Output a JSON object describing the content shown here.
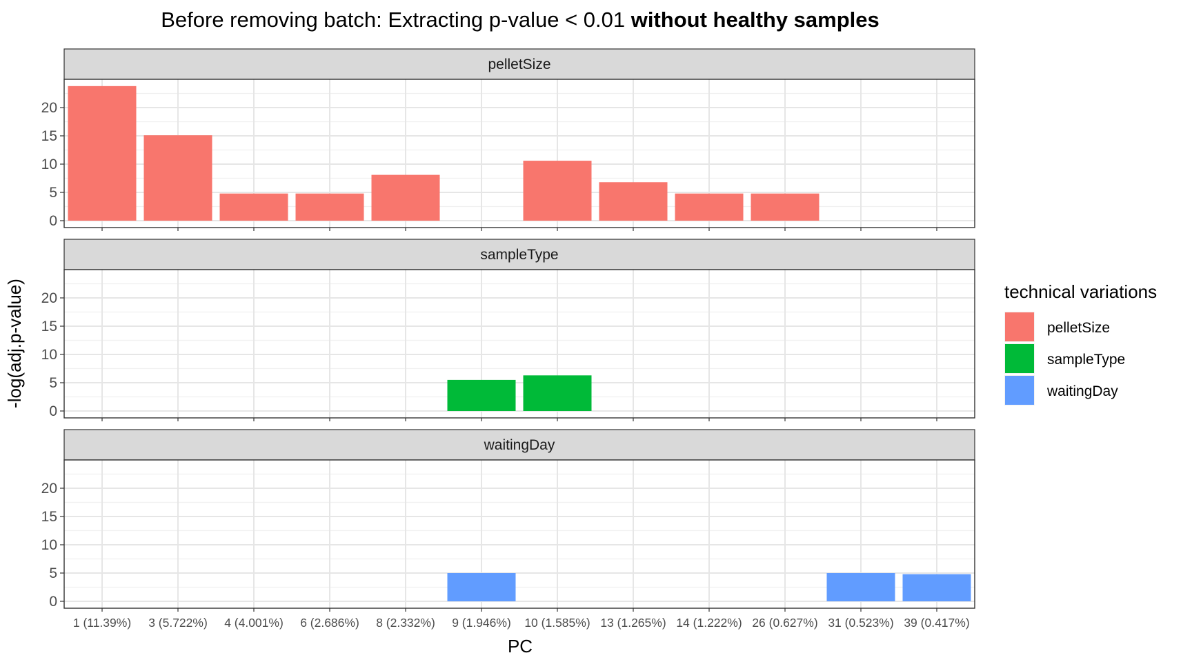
{
  "chart_data": {
    "type": "bar",
    "title_prefix": "Before removing batch: Extracting p-value < 0.01 ",
    "title_bold": "without healthy samples",
    "xlabel": "PC",
    "ylabel": "-log(adj.p-value)",
    "ylim": [
      0,
      25
    ],
    "yticks": [
      0,
      5,
      10,
      15,
      20
    ],
    "categories": [
      "1 (11.39%)",
      "3 (5.722%)",
      "4 (4.001%)",
      "6 (2.686%)",
      "8 (2.332%)",
      "9 (1.946%)",
      "10 (1.585%)",
      "13 (1.265%)",
      "14 (1.222%)",
      "26 (0.627%)",
      "31 (0.523%)",
      "39 (0.417%)"
    ],
    "grid": true,
    "legend": {
      "title": "technical variations",
      "position": "right"
    },
    "series": [
      {
        "name": "pelletSize",
        "color": "#F8766D",
        "values": [
          23.8,
          15.1,
          4.8,
          4.8,
          8.1,
          null,
          10.6,
          6.8,
          4.8,
          4.8,
          null,
          null
        ]
      },
      {
        "name": "sampleType",
        "color": "#00BA38",
        "values": [
          null,
          null,
          null,
          null,
          null,
          5.5,
          6.3,
          null,
          null,
          null,
          null,
          null
        ]
      },
      {
        "name": "waitingDay",
        "color": "#619CFF",
        "values": [
          null,
          null,
          null,
          null,
          null,
          5.0,
          null,
          null,
          null,
          null,
          5.0,
          4.8
        ]
      }
    ]
  }
}
